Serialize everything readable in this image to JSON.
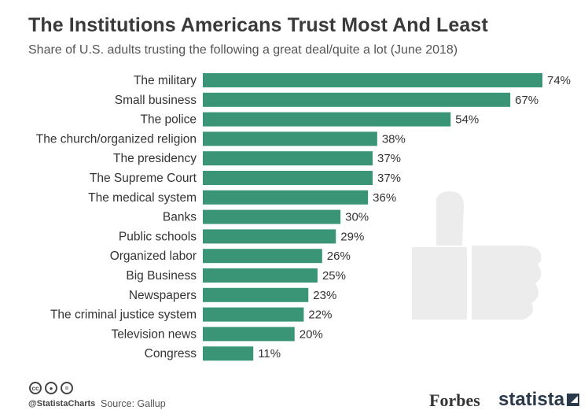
{
  "header": {
    "title": "The Institutions Americans Trust Most And Least",
    "subtitle": "Share of U.S. adults trusting the following a great deal/quite a lot (June 2018)"
  },
  "footer": {
    "handle": "@StatistaCharts",
    "source": "Source: Gallup",
    "forbes_logo": "Forbes",
    "statista_logo": "statista",
    "license_icons": [
      "creative-commons-icon",
      "attribution-icon",
      "no-derivatives-icon"
    ]
  },
  "colors": {
    "bar": "#3a9577",
    "thumb": "#ececec"
  },
  "chart_data": {
    "type": "bar",
    "orientation": "horizontal",
    "title": "The Institutions Americans Trust Most And Least",
    "subtitle": "Share of U.S. adults trusting the following a great deal/quite a lot (June 2018)",
    "categories": [
      "The military",
      "Small business",
      "The police",
      "The church/organized religion",
      "The presidency",
      "The Supreme Court",
      "The medical system",
      "Banks",
      "Public schools",
      "Organized labor",
      "Big Business",
      "Newspapers",
      "The criminal justice system",
      "Television news",
      "Congress"
    ],
    "values": [
      74,
      67,
      54,
      38,
      37,
      37,
      36,
      30,
      29,
      26,
      25,
      23,
      22,
      20,
      11
    ],
    "value_suffix": "%",
    "xlim": [
      0,
      74
    ],
    "grid": false,
    "legend": "none"
  }
}
